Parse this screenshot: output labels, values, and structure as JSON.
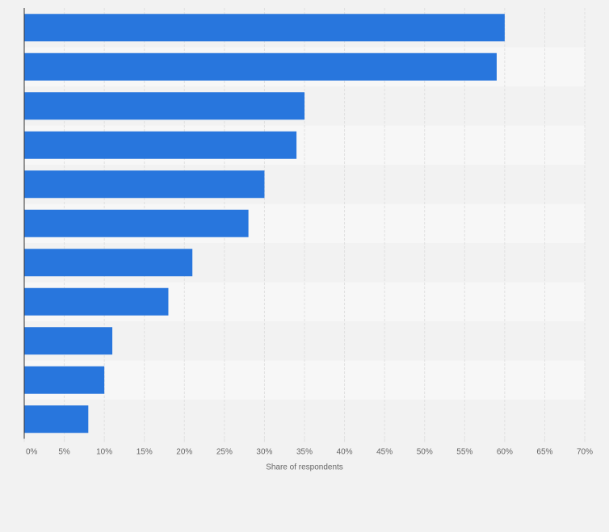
{
  "colors": {
    "page_background": "#f2f2f2",
    "band_dark": "#f2f2f2",
    "band_light": "#f7f7f7",
    "bar": "#2876dd",
    "grid": "#e0e0e0",
    "axis": "#333333",
    "text": "#666666"
  },
  "chart_data": {
    "type": "bar",
    "orientation": "horizontal",
    "title": "",
    "xlabel": "Share of respondents",
    "ylabel": "",
    "xlim": [
      0,
      70
    ],
    "x_ticks": [
      0,
      5,
      10,
      15,
      20,
      25,
      30,
      35,
      40,
      45,
      50,
      55,
      60,
      65,
      70
    ],
    "x_tick_labels": [
      "0%",
      "5%",
      "10%",
      "15%",
      "20%",
      "25%",
      "30%",
      "35%",
      "40%",
      "45%",
      "50%",
      "55%",
      "60%",
      "65%",
      "70%"
    ],
    "categories": [
      "",
      "",
      "",
      "",
      "",
      "",
      "",
      "",
      "",
      "",
      ""
    ],
    "values": [
      60,
      59,
      35,
      34,
      30,
      28,
      21,
      18,
      11,
      10,
      8
    ],
    "grid": true,
    "legend": "none"
  }
}
